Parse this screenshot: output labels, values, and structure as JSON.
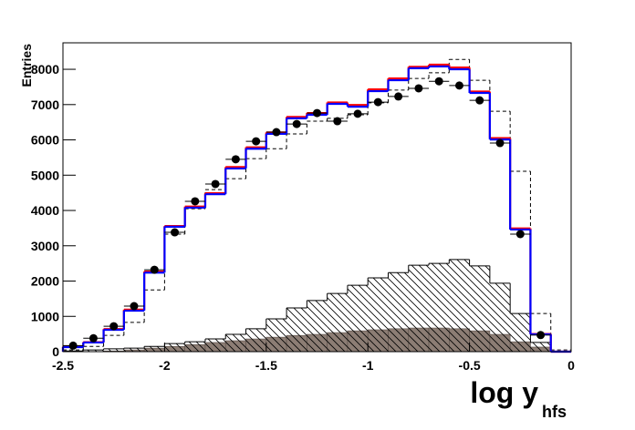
{
  "chart_data": {
    "type": "histogram",
    "xlabel": "log y",
    "xlabel_sub": "hfs",
    "ylabel": "Entries",
    "bins": [
      -2.5,
      -2.4,
      -2.3,
      -2.2,
      -2.1,
      -2.0,
      -1.9,
      -1.8,
      -1.7,
      -1.6,
      -1.5,
      -1.4,
      -1.3,
      -1.2,
      -1.1,
      -1.0,
      -0.9,
      -0.8,
      -0.7,
      -0.6,
      -0.5,
      -0.4,
      -0.3,
      -0.2,
      -0.1,
      0
    ],
    "xlim": [
      -2.5,
      0
    ],
    "xticks": [
      -2.5,
      -2,
      -1.5,
      -1,
      -0.5,
      0
    ],
    "ylim": [
      0,
      8750
    ],
    "yticks": [
      0,
      1000,
      2000,
      3000,
      4000,
      5000,
      6000,
      7000,
      8000
    ],
    "histograms": [
      {
        "style": "filled",
        "color": "#8c7d74",
        "values": [
          0,
          0,
          20,
          50,
          100,
          150,
          200,
          260,
          310,
          360,
          410,
          460,
          490,
          540,
          590,
          620,
          650,
          670,
          670,
          650,
          590,
          490,
          280,
          130,
          0
        ]
      },
      {
        "style": "hatched",
        "color": "#000000",
        "values": [
          20,
          50,
          80,
          100,
          150,
          230,
          280,
          360,
          490,
          650,
          930,
          1240,
          1450,
          1650,
          1880,
          2090,
          2240,
          2450,
          2500,
          2610,
          2430,
          1940,
          1080,
          260,
          0
        ]
      },
      {
        "style": "dashed",
        "color": "#000000",
        "values": [
          50,
          150,
          460,
          830,
          1750,
          3330,
          4050,
          4590,
          4900,
          5470,
          5750,
          6170,
          6530,
          6610,
          6710,
          7050,
          7410,
          7740,
          7900,
          8280,
          7690,
          6810,
          5110,
          1080,
          50
        ]
      },
      {
        "style": "line",
        "color": "#ff0000",
        "values": [
          140,
          270,
          640,
          1190,
          2270,
          3560,
          4110,
          4490,
          5230,
          5790,
          6210,
          6650,
          6760,
          7060,
          6990,
          7430,
          7740,
          8070,
          8130,
          8050,
          7370,
          6050,
          3490,
          500,
          0
        ]
      },
      {
        "style": "line",
        "color": "#0000ff",
        "values": [
          130,
          260,
          620,
          1160,
          2240,
          3540,
          4080,
          4460,
          5190,
          5750,
          6170,
          6610,
          6710,
          7020,
          6940,
          7380,
          7690,
          8030,
          8080,
          8000,
          7330,
          6010,
          3460,
          490,
          0
        ]
      },
      {
        "style": "points",
        "color": "#000000",
        "values": [
          170,
          380,
          720,
          1290,
          2320,
          3380,
          4260,
          4750,
          5450,
          5960,
          6220,
          6450,
          6760,
          6530,
          6740,
          7070,
          7230,
          7460,
          7660,
          7540,
          7120,
          5910,
          3330,
          470,
          null
        ]
      }
    ]
  }
}
